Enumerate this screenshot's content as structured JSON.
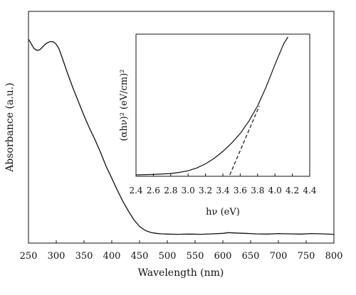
{
  "chart_data": [
    {
      "type": "line",
      "role": "main",
      "xlabel": "Wavelength (nm)",
      "ylabel": "Absorbance (a.u.)",
      "xlim": [
        250,
        800
      ],
      "ylim": [
        0,
        1
      ],
      "xticks": [
        "250",
        "300",
        "350",
        "400",
        "450",
        "500",
        "550",
        "600",
        "650",
        "700",
        "750",
        "800"
      ],
      "yticks_shown": false,
      "grid": false,
      "legend": "none",
      "line_color": "#111111",
      "series": [
        {
          "x": [
            250,
            255,
            260,
            265,
            270,
            275,
            280,
            285,
            290,
            295,
            300,
            305,
            310,
            315,
            320,
            330,
            340,
            350,
            360,
            370,
            380,
            390,
            400,
            410,
            420,
            430,
            440,
            450,
            460,
            470,
            480,
            490,
            500,
            520,
            540,
            560,
            580,
            600,
            610,
            620,
            640,
            660,
            680,
            700,
            720,
            740,
            760,
            780,
            800
          ],
          "y": [
            0.88,
            0.86,
            0.84,
            0.832,
            0.834,
            0.845,
            0.858,
            0.866,
            0.87,
            0.868,
            0.858,
            0.838,
            0.805,
            0.77,
            0.735,
            0.67,
            0.61,
            0.55,
            0.495,
            0.445,
            0.39,
            0.33,
            0.28,
            0.228,
            0.18,
            0.138,
            0.1,
            0.072,
            0.055,
            0.046,
            0.042,
            0.04,
            0.039,
            0.038,
            0.039,
            0.038,
            0.04,
            0.042,
            0.045,
            0.044,
            0.042,
            0.04,
            0.039,
            0.041,
            0.04,
            0.039,
            0.041,
            0.04,
            0.038
          ]
        }
      ]
    },
    {
      "type": "line",
      "role": "inset",
      "xlabel": "hν (eV)",
      "ylabel": "(αhν)² (eV/cm)²",
      "xlim": [
        2.4,
        4.4
      ],
      "ylim": [
        0,
        1
      ],
      "xticks": [
        "2.4",
        "2.6",
        "2.8",
        "3.0",
        "3.2",
        "3.4",
        "3.6",
        "3.8",
        "4.0",
        "4.2",
        "4.4"
      ],
      "yticks_shown": false,
      "grid": false,
      "legend": "none",
      "line_color": "#111111",
      "series": [
        {
          "style": "solid",
          "x": [
            2.4,
            2.6,
            2.8,
            2.9,
            3.0,
            3.1,
            3.2,
            3.3,
            3.4,
            3.5,
            3.6,
            3.7,
            3.8,
            3.9,
            4.0,
            4.1,
            4.15
          ],
          "y": [
            0.0,
            0.003,
            0.01,
            0.018,
            0.03,
            0.05,
            0.08,
            0.12,
            0.17,
            0.23,
            0.3,
            0.39,
            0.5,
            0.64,
            0.8,
            0.95,
            1.0
          ]
        },
        {
          "style": "dashed",
          "x": [
            3.48,
            3.82
          ],
          "y": [
            0.0,
            0.5
          ]
        }
      ]
    }
  ]
}
